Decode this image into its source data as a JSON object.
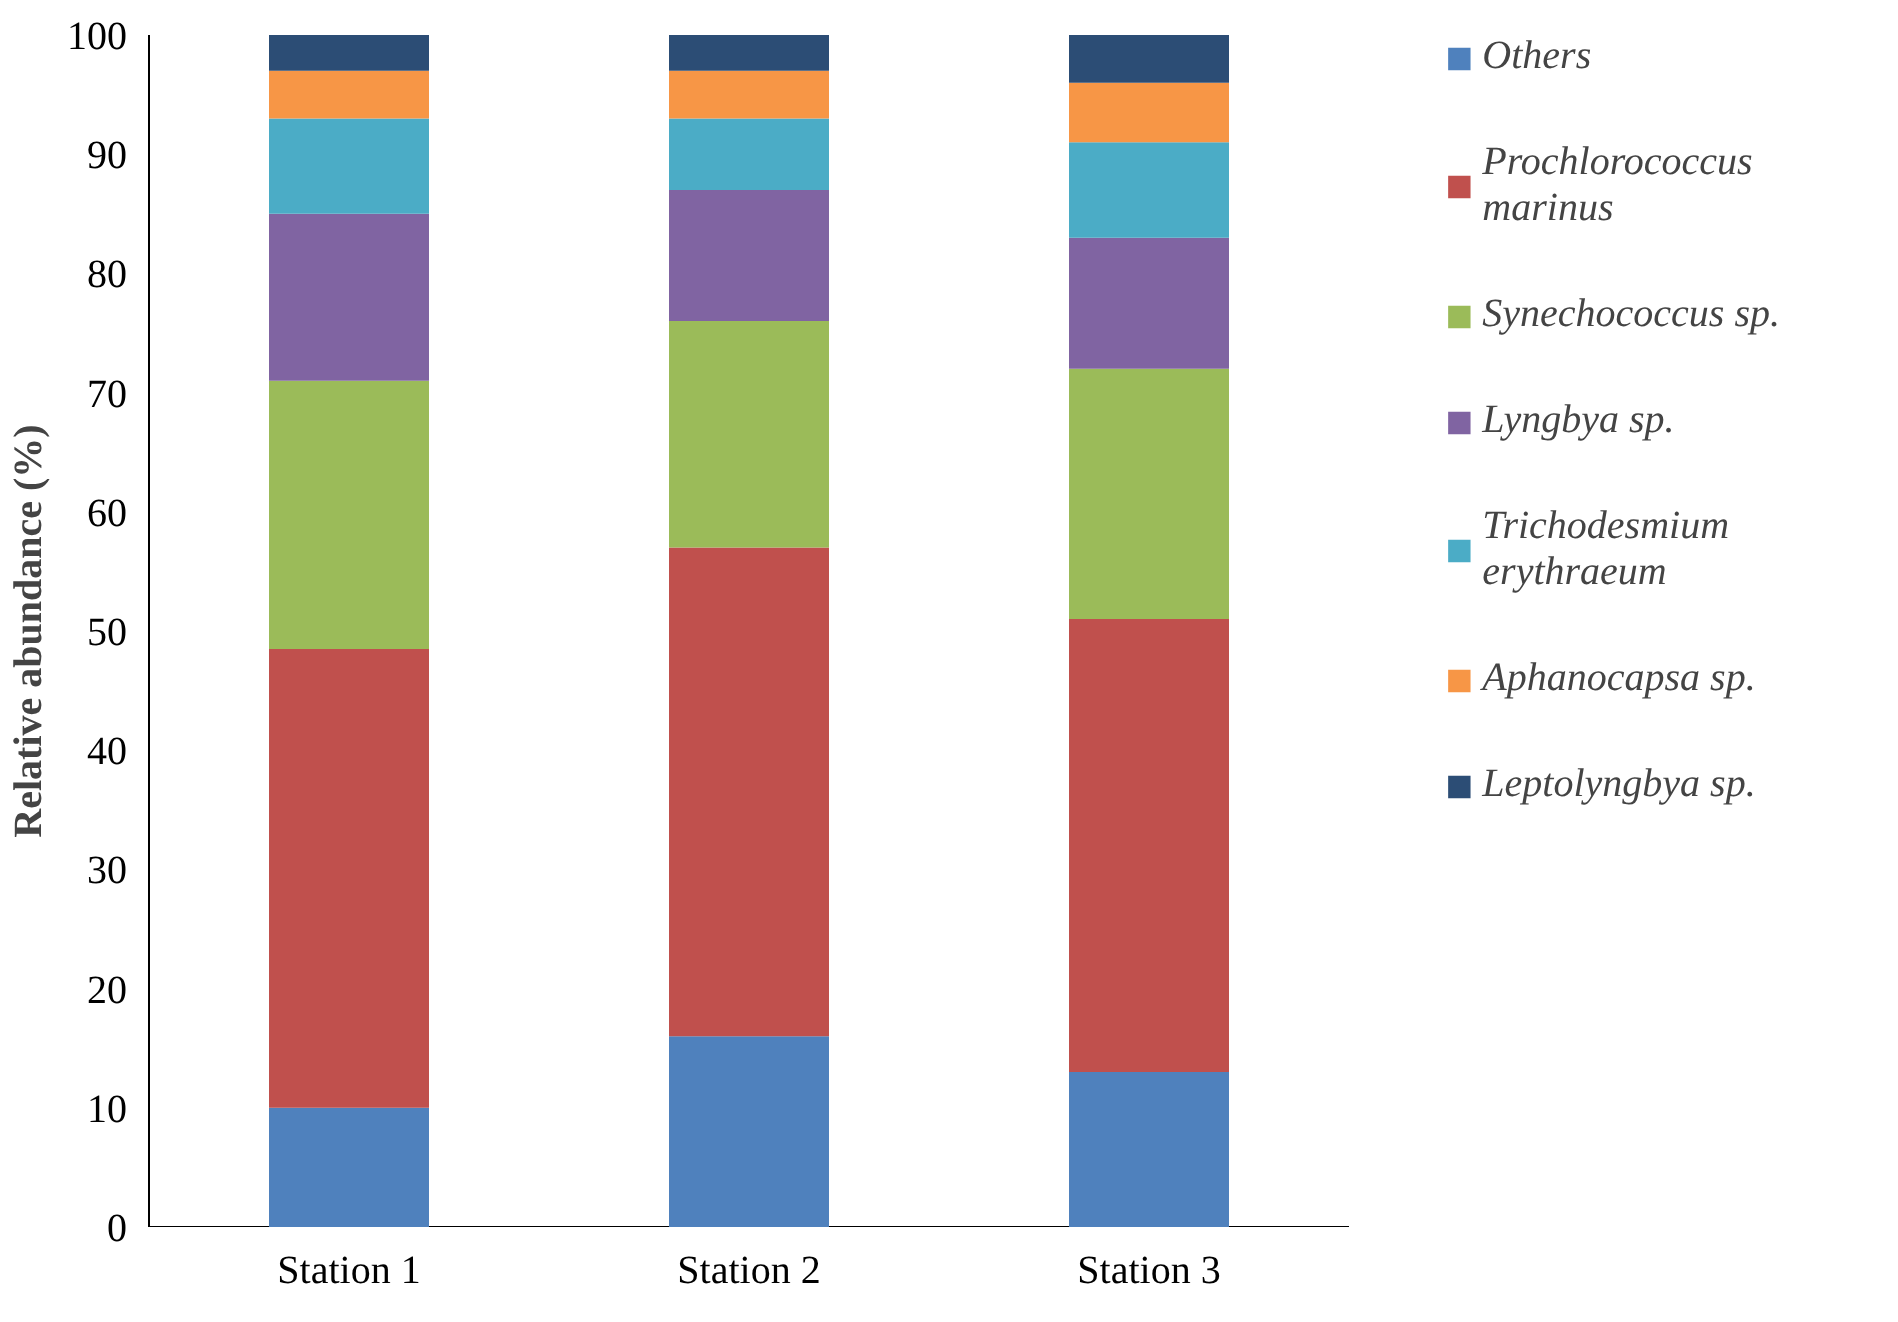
{
  "chart_data": {
    "type": "bar",
    "stacked": true,
    "ylabel": "Relative abundance (%)",
    "categories": [
      "Station 1",
      "Station 2",
      "Station 3"
    ],
    "ylim": [
      0,
      100
    ],
    "yticks": [
      0,
      10,
      20,
      30,
      40,
      50,
      60,
      70,
      80,
      90,
      100
    ],
    "grid": false,
    "legend": "right",
    "series": [
      {
        "name": "Others",
        "color": "#4f81bd",
        "values": [
          10,
          16,
          13
        ]
      },
      {
        "name": "Prochlorococcus marinus",
        "color": "#c0504d",
        "values": [
          38.5,
          41,
          38
        ]
      },
      {
        "name": "Synechococcus sp.",
        "color": "#9bbb59",
        "values": [
          22.5,
          19,
          21
        ]
      },
      {
        "name": "Lyngbya sp.",
        "color": "#8064a2",
        "values": [
          14,
          11,
          11
        ]
      },
      {
        "name": "Trichodesmium erythraeum",
        "color": "#4bacc6",
        "values": [
          8,
          6,
          8
        ]
      },
      {
        "name": "Aphanocapsa sp.",
        "color": "#f79646",
        "values": [
          4,
          4,
          5
        ]
      },
      {
        "name": "Leptolyngbya sp.",
        "color": "#2c4d75",
        "values": [
          3,
          3,
          4
        ]
      }
    ]
  }
}
